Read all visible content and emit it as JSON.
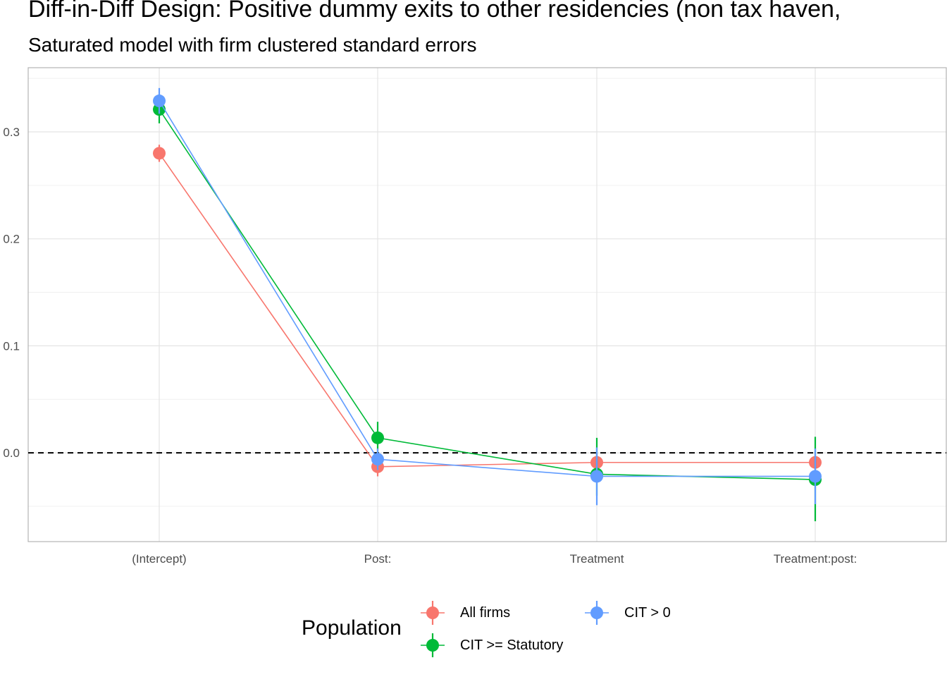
{
  "chart_data": {
    "type": "line",
    "title": "Diff-in-Diff Design: Positive dummy exits to other residencies (non tax haven,",
    "subtitle": "Saturated model with firm clustered standard errors",
    "xlabel": "",
    "ylabel": "",
    "categories": [
      "(Intercept)",
      "Post:",
      "Treatment",
      "Treatment:post:"
    ],
    "y_ticks": [
      0.0,
      0.1,
      0.2,
      0.3
    ],
    "y_tick_labels": [
      "0.0",
      "0.1",
      "0.2",
      "0.3"
    ],
    "ylim": [
      -0.083,
      0.36
    ],
    "reference_line": 0.0,
    "grid": true,
    "legend": {
      "title": "Population",
      "placement": "bottom"
    },
    "series": [
      {
        "name": "All firms",
        "color": "#F8766D",
        "values": [
          0.28,
          -0.013,
          -0.009,
          -0.009
        ],
        "lower": [
          0.272,
          -0.022,
          -0.018,
          -0.019
        ],
        "upper": [
          0.288,
          -0.004,
          0.0,
          0.001
        ]
      },
      {
        "name": "CIT >= Statutory",
        "color": "#00BA38",
        "values": [
          0.321,
          0.014,
          -0.02,
          -0.025
        ],
        "lower": [
          0.308,
          -0.001,
          -0.04,
          -0.064
        ],
        "upper": [
          0.333,
          0.029,
          0.014,
          0.015
        ]
      },
      {
        "name": "CIT > 0",
        "color": "#619CFF",
        "values": [
          0.329,
          -0.006,
          -0.022,
          -0.022
        ],
        "lower": [
          0.317,
          -0.016,
          -0.049,
          -0.048
        ],
        "upper": [
          0.341,
          0.004,
          0.005,
          0.004
        ]
      }
    ]
  }
}
